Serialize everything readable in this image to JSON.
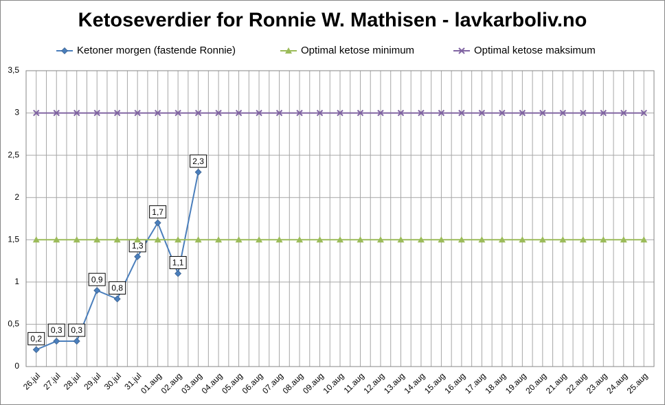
{
  "chart_data": {
    "type": "line",
    "title": "Ketoseverdier for Ronnie W. Mathisen - lavkarboliv.no",
    "categories": [
      "26.jul",
      "27.jul",
      "28.jul",
      "29.jul",
      "30.jul",
      "31.jul",
      "01.aug",
      "02.aug",
      "03.aug",
      "04.aug",
      "05.aug",
      "06.aug",
      "07.aug",
      "08.aug",
      "09.aug",
      "10.aug",
      "11.aug",
      "12.aug",
      "13.aug",
      "14.aug",
      "15.aug",
      "16.aug",
      "17.aug",
      "18.aug",
      "19.aug",
      "20.aug",
      "21.aug",
      "22.aug",
      "23.aug",
      "24.aug",
      "25.aug"
    ],
    "series": [
      {
        "name": "Ketoner morgen (fastende Ronnie)",
        "color": "#4a7ebb",
        "marker": "diamond",
        "values": [
          0.2,
          0.3,
          0.3,
          0.9,
          0.8,
          1.3,
          1.7,
          1.1,
          2.3,
          null,
          null,
          null,
          null,
          null,
          null,
          null,
          null,
          null,
          null,
          null,
          null,
          null,
          null,
          null,
          null,
          null,
          null,
          null,
          null,
          null,
          null
        ],
        "value_labels": [
          "0,2",
          "0,3",
          "0,3",
          "0,9",
          "0,8",
          "1,3",
          "1,7",
          "1,1",
          "2,3",
          null,
          null,
          null,
          null,
          null,
          null,
          null,
          null,
          null,
          null,
          null,
          null,
          null,
          null,
          null,
          null,
          null,
          null,
          null,
          null,
          null,
          null
        ]
      },
      {
        "name": "Optimal ketose minimum",
        "color": "#9bbb59",
        "marker": "triangle",
        "values": [
          1.5,
          1.5,
          1.5,
          1.5,
          1.5,
          1.5,
          1.5,
          1.5,
          1.5,
          1.5,
          1.5,
          1.5,
          1.5,
          1.5,
          1.5,
          1.5,
          1.5,
          1.5,
          1.5,
          1.5,
          1.5,
          1.5,
          1.5,
          1.5,
          1.5,
          1.5,
          1.5,
          1.5,
          1.5,
          1.5,
          1.5
        ]
      },
      {
        "name": "Optimal ketose maksimum",
        "color": "#8064a2",
        "marker": "x",
        "values": [
          3,
          3,
          3,
          3,
          3,
          3,
          3,
          3,
          3,
          3,
          3,
          3,
          3,
          3,
          3,
          3,
          3,
          3,
          3,
          3,
          3,
          3,
          3,
          3,
          3,
          3,
          3,
          3,
          3,
          3,
          3
        ]
      }
    ],
    "ylim": [
      0,
      3.5
    ],
    "yticks": [
      0,
      {
        "value": 0.5,
        "label": "0,5"
      },
      1,
      {
        "value": 1.5,
        "label": "1,5"
      },
      2,
      {
        "value": 2.5,
        "label": "2,5"
      },
      3,
      {
        "value": 3.5,
        "label": "3,5"
      }
    ],
    "grid": true,
    "legend": "top"
  }
}
